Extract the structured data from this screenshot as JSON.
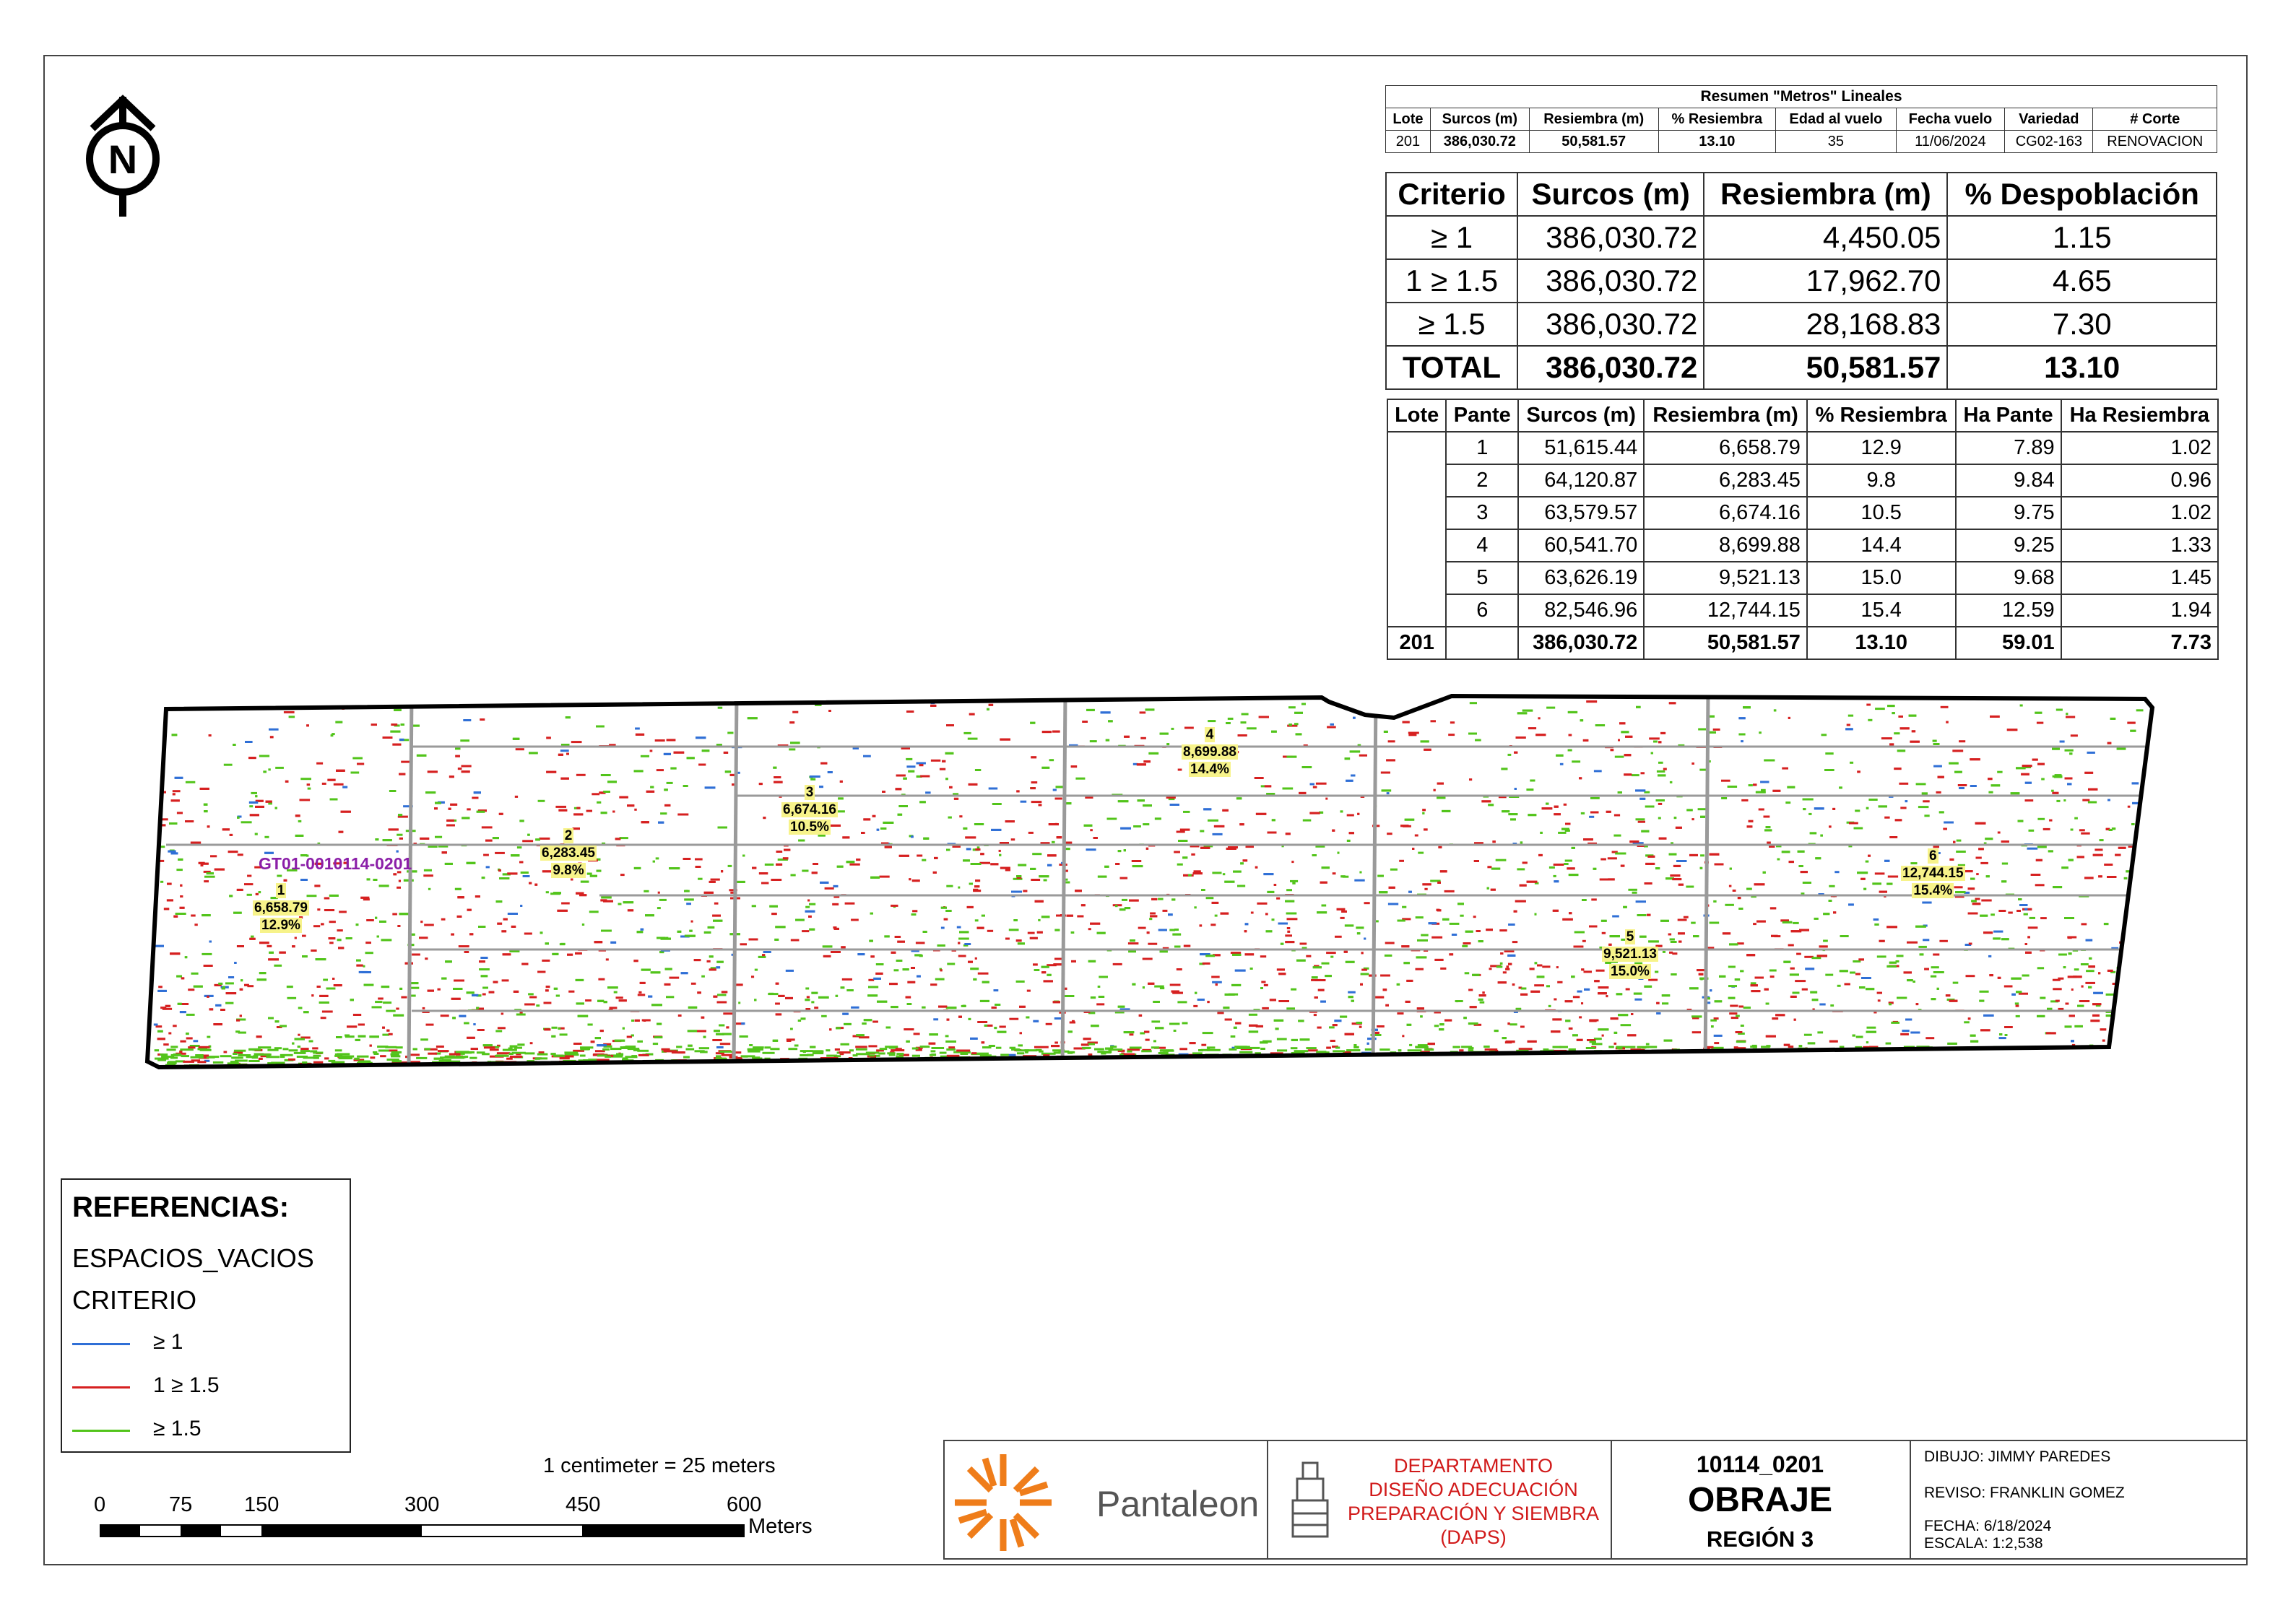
{
  "summary": {
    "title": "Resumen \"Metros\" Lineales",
    "headers": [
      "Lote",
      "Surcos (m)",
      "Resiembra (m)",
      "% Resiembra",
      "Edad al vuelo",
      "Fecha vuelo",
      "Variedad",
      "# Corte"
    ],
    "row": [
      "201",
      "386,030.72",
      "50,581.57",
      "13.10",
      "35",
      "11/06/2024",
      "CG02-163",
      "RENOVACION"
    ]
  },
  "criteria": {
    "headers": [
      "Criterio",
      "Surcos (m)",
      "Resiembra (m)",
      "% Despoblación"
    ],
    "rows": [
      [
        "≥ 1",
        "386,030.72",
        "4,450.05",
        "1.15"
      ],
      [
        "1 ≥ 1.5",
        "386,030.72",
        "17,962.70",
        "4.65"
      ],
      [
        "≥ 1.5",
        "386,030.72",
        "28,168.83",
        "7.30"
      ],
      [
        "TOTAL",
        "386,030.72",
        "50,581.57",
        "13.10"
      ]
    ]
  },
  "pantes": {
    "headers": [
      "Lote",
      "Pante",
      "Surcos (m)",
      "Resiembra (m)",
      "% Resiembra",
      "Ha Pante",
      "Ha Resiembra"
    ],
    "rows": [
      [
        "",
        "1",
        "51,615.44",
        "6,658.79",
        "12.9",
        "7.89",
        "1.02"
      ],
      [
        "",
        "2",
        "64,120.87",
        "6,283.45",
        "9.8",
        "9.84",
        "0.96"
      ],
      [
        "",
        "3",
        "63,579.57",
        "6,674.16",
        "10.5",
        "9.75",
        "1.02"
      ],
      [
        "",
        "4",
        "60,541.70",
        "8,699.88",
        "14.4",
        "9.25",
        "1.33"
      ],
      [
        "",
        "5",
        "63,626.19",
        "9,521.13",
        "15.0",
        "9.68",
        "1.45"
      ],
      [
        "",
        "6",
        "82,546.96",
        "12,744.15",
        "15.4",
        "12.59",
        "1.94"
      ]
    ],
    "total": [
      "201",
      "",
      "386,030.72",
      "50,581.57",
      "13.10",
      "59.01",
      "7.73"
    ]
  },
  "map": {
    "field_id": "GT01-0010114-0201",
    "pante_labels": [
      {
        "id": "1",
        "value": "6,658.79",
        "pct": "12.9%"
      },
      {
        "id": "2",
        "value": "6,283.45",
        "pct": "9.8%"
      },
      {
        "id": "3",
        "value": "6,674.16",
        "pct": "10.5%"
      },
      {
        "id": "4",
        "value": "8,699.88",
        "pct": "14.4%"
      },
      {
        "id": "5",
        "value": "9,521.13",
        "pct": "15.0%"
      },
      {
        "id": "6",
        "value": "12,744.15",
        "pct": "15.4%"
      }
    ],
    "colors": {
      "ge1": "#2f6fd6",
      "r1_15": "#d62020",
      "ge15": "#52c41a",
      "boundary": "#000000",
      "road": "#9a9a9a"
    }
  },
  "legend": {
    "title": "REFERENCIAS:",
    "layer": "ESPACIOS_VACIOS",
    "field": "CRITERIO",
    "items": [
      {
        "label": "≥ 1",
        "color": "#2f6fd6"
      },
      {
        "label": "1 ≥ 1.5",
        "color": "#d62020"
      },
      {
        "label": "≥ 1.5",
        "color": "#52c41a"
      }
    ]
  },
  "scale": {
    "text": "1 centimeter = 25 meters",
    "ticks": [
      "0",
      "75",
      "150",
      "300",
      "450",
      "600"
    ],
    "unit": "Meters"
  },
  "titleblock": {
    "company": "Pantaleon",
    "department": [
      "DEPARTAMENTO",
      "DISEÑO ADECUACIÓN",
      "PREPARACIÓN Y SIEMBRA",
      "(DAPS)"
    ],
    "code": "10114_0201",
    "farm": "OBRAJE",
    "region": "REGIÓN 3",
    "dibujo": "DIBUJO: JIMMY PAREDES",
    "reviso": "REVISO: FRANKLIN GOMEZ",
    "fecha": "FECHA: 6/18/2024",
    "escala": "ESCALA: 1:2,538"
  },
  "north": {
    "label": "N"
  }
}
